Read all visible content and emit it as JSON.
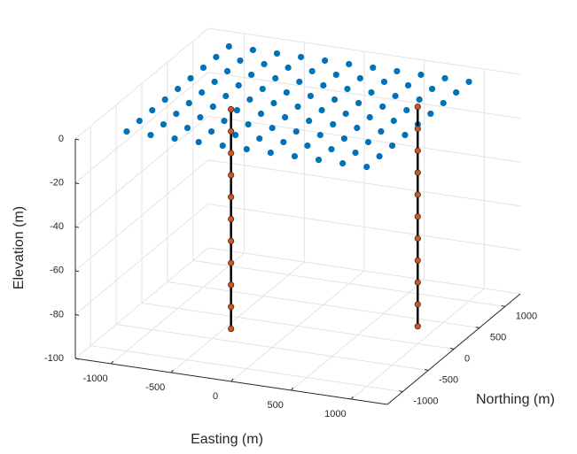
{
  "chart_data": {
    "type": "scatter3d",
    "xlabel": "Easting (m)",
    "ylabel": "Northing (m)",
    "zlabel": "Elevation (m)",
    "xlim": [
      -1300,
      1300
    ],
    "ylim": [
      -1300,
      1300
    ],
    "zlim": [
      -100,
      0
    ],
    "xticks": [
      -1000,
      -500,
      0,
      500,
      1000
    ],
    "yticks": [
      -1000,
      -500,
      0,
      500,
      1000
    ],
    "zticks": [
      -100,
      -80,
      -60,
      -40,
      -20,
      0
    ],
    "grid": true,
    "series": [
      {
        "color": "#0072bd",
        "edge_color": "#0072bd",
        "line": false,
        "x": [
          -1000,
          -800,
          -600,
          -400,
          -200,
          0,
          200,
          400,
          600,
          800,
          1000,
          -1000,
          -800,
          -600,
          -400,
          -200,
          0,
          200,
          400,
          600,
          800,
          1000,
          -1000,
          -800,
          -600,
          -400,
          -200,
          0,
          200,
          400,
          600,
          800,
          1000,
          -1000,
          -800,
          -600,
          -400,
          -200,
          0,
          200,
          400,
          600,
          800,
          1000,
          -1000,
          -800,
          -600,
          -400,
          -200,
          0,
          200,
          400,
          600,
          800,
          1000,
          -1000,
          -800,
          -600,
          -400,
          -200,
          0,
          200,
          400,
          600,
          800,
          1000,
          -1000,
          -800,
          -600,
          -400,
          -200,
          0,
          200,
          400,
          600,
          800,
          1000,
          -1000,
          -800,
          -600,
          -400,
          -200,
          0,
          200,
          400,
          600,
          800,
          1000,
          -1000,
          -800,
          -600,
          -400,
          -200,
          0,
          200,
          400,
          600,
          800,
          1000
        ],
        "y": [
          -1000,
          -1000,
          -1000,
          -1000,
          -1000,
          -1000,
          -1000,
          -1000,
          -1000,
          -1000,
          -1000,
          -750,
          -750,
          -750,
          -750,
          -750,
          -750,
          -750,
          -750,
          -750,
          -750,
          -750,
          -500,
          -500,
          -500,
          -500,
          -500,
          -500,
          -500,
          -500,
          -500,
          -500,
          -500,
          -250,
          -250,
          -250,
          -250,
          -250,
          -250,
          -250,
          -250,
          -250,
          -250,
          -250,
          0,
          0,
          0,
          0,
          0,
          0,
          0,
          0,
          0,
          0,
          0,
          250,
          250,
          250,
          250,
          250,
          250,
          250,
          250,
          250,
          250,
          250,
          500,
          500,
          500,
          500,
          500,
          500,
          500,
          500,
          500,
          500,
          500,
          750,
          750,
          750,
          750,
          750,
          750,
          750,
          750,
          750,
          750,
          750,
          1000,
          1000,
          1000,
          1000,
          1000,
          1000,
          1000,
          1000,
          1000,
          1000,
          1000
        ],
        "z": [
          0,
          0,
          0,
          0,
          0,
          0,
          0,
          0,
          0,
          0,
          0,
          0,
          0,
          0,
          0,
          0,
          0,
          0,
          0,
          0,
          0,
          0,
          0,
          0,
          0,
          0,
          0,
          0,
          0,
          0,
          0,
          0,
          0,
          0,
          0,
          0,
          0,
          0,
          0,
          0,
          0,
          0,
          0,
          0,
          0,
          0,
          0,
          0,
          0,
          0,
          0,
          0,
          0,
          0,
          0,
          0,
          0,
          0,
          0,
          0,
          0,
          0,
          0,
          0,
          0,
          0,
          0,
          0,
          0,
          0,
          0,
          0,
          0,
          0,
          0,
          0,
          0,
          0,
          0,
          0,
          0,
          0,
          0,
          0,
          0,
          0,
          0,
          0,
          0,
          0,
          0,
          0,
          0,
          0,
          0,
          0,
          0,
          0,
          0
        ]
      },
      {
        "color": "#d95319",
        "edge_color": "#333333",
        "line": true,
        "line_color": "#000000",
        "x": [
          -450,
          -450,
          -450,
          -450,
          -450,
          -450,
          -450,
          -450,
          -450,
          -450,
          -450
        ],
        "y": [
          -250,
          -250,
          -250,
          -250,
          -250,
          -250,
          -250,
          -250,
          -250,
          -250,
          -250
        ],
        "z": [
          0,
          -10,
          -20,
          -30,
          -40,
          -50,
          -60,
          -70,
          -80,
          -90,
          -100
        ]
      },
      {
        "color": "#d95319",
        "edge_color": "#333333",
        "line": true,
        "line_color": "#000000",
        "x": [
          850,
          850,
          850,
          850,
          850,
          850,
          850,
          850,
          850,
          850,
          850
        ],
        "y": [
          350,
          350,
          350,
          350,
          350,
          350,
          350,
          350,
          350,
          350,
          350
        ],
        "z": [
          0,
          -10,
          -20,
          -30,
          -40,
          -50,
          -60,
          -70,
          -80,
          -90,
          -100
        ]
      }
    ]
  }
}
